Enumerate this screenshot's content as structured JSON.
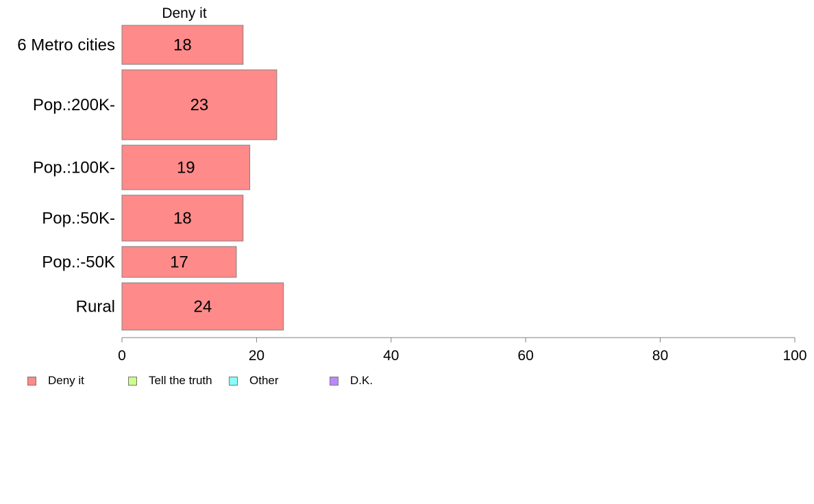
{
  "chart_data": {
    "type": "bar",
    "orientation": "horizontal",
    "stacked": true,
    "panel_title": "Deny it",
    "categories": [
      "6 Metro cities",
      "Pop.:200K-",
      "Pop.:100K-",
      "Pop.:50K-",
      "Pop.:-50K",
      "Rural"
    ],
    "series": [
      {
        "name": "Deny it",
        "values": [
          18,
          23,
          19,
          18,
          17,
          24
        ],
        "color": "#FF8A8A"
      }
    ],
    "xlim": [
      0,
      100
    ],
    "xticks": [
      "0",
      "20",
      "40",
      "60",
      "80",
      "100"
    ],
    "grid": false,
    "legend_position": "bottom-left",
    "legend": [
      {
        "label": "Deny it",
        "color": "#FF8A8A"
      },
      {
        "label": "Tell the truth",
        "color": "#CCFF88"
      },
      {
        "label": "Other",
        "color": "#88FFFF"
      },
      {
        "label": "D.K.",
        "color": "#BB88FF"
      }
    ]
  }
}
